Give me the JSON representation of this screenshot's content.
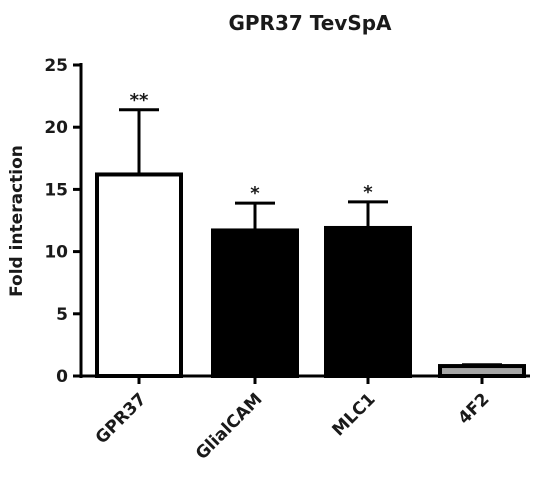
{
  "chart_data": {
    "type": "bar",
    "title": "GPR37 TevSpA",
    "xlabel": "",
    "ylabel": "Fold interaction",
    "ylim": [
      0,
      25
    ],
    "yticks": [
      0,
      5,
      10,
      15,
      20,
      25
    ],
    "categories": [
      "GPR37",
      "GlialCAM",
      "MLC1",
      "4F2"
    ],
    "values": [
      16.2,
      11.7,
      11.9,
      0.8
    ],
    "errors": [
      5.2,
      2.2,
      2.1,
      0.1
    ],
    "significance": [
      "**",
      "*",
      "*",
      ""
    ],
    "bar_fills": [
      "#ffffff",
      "#000000",
      "#000000",
      "#a6a6a6"
    ],
    "grid": false,
    "legend": "none"
  }
}
